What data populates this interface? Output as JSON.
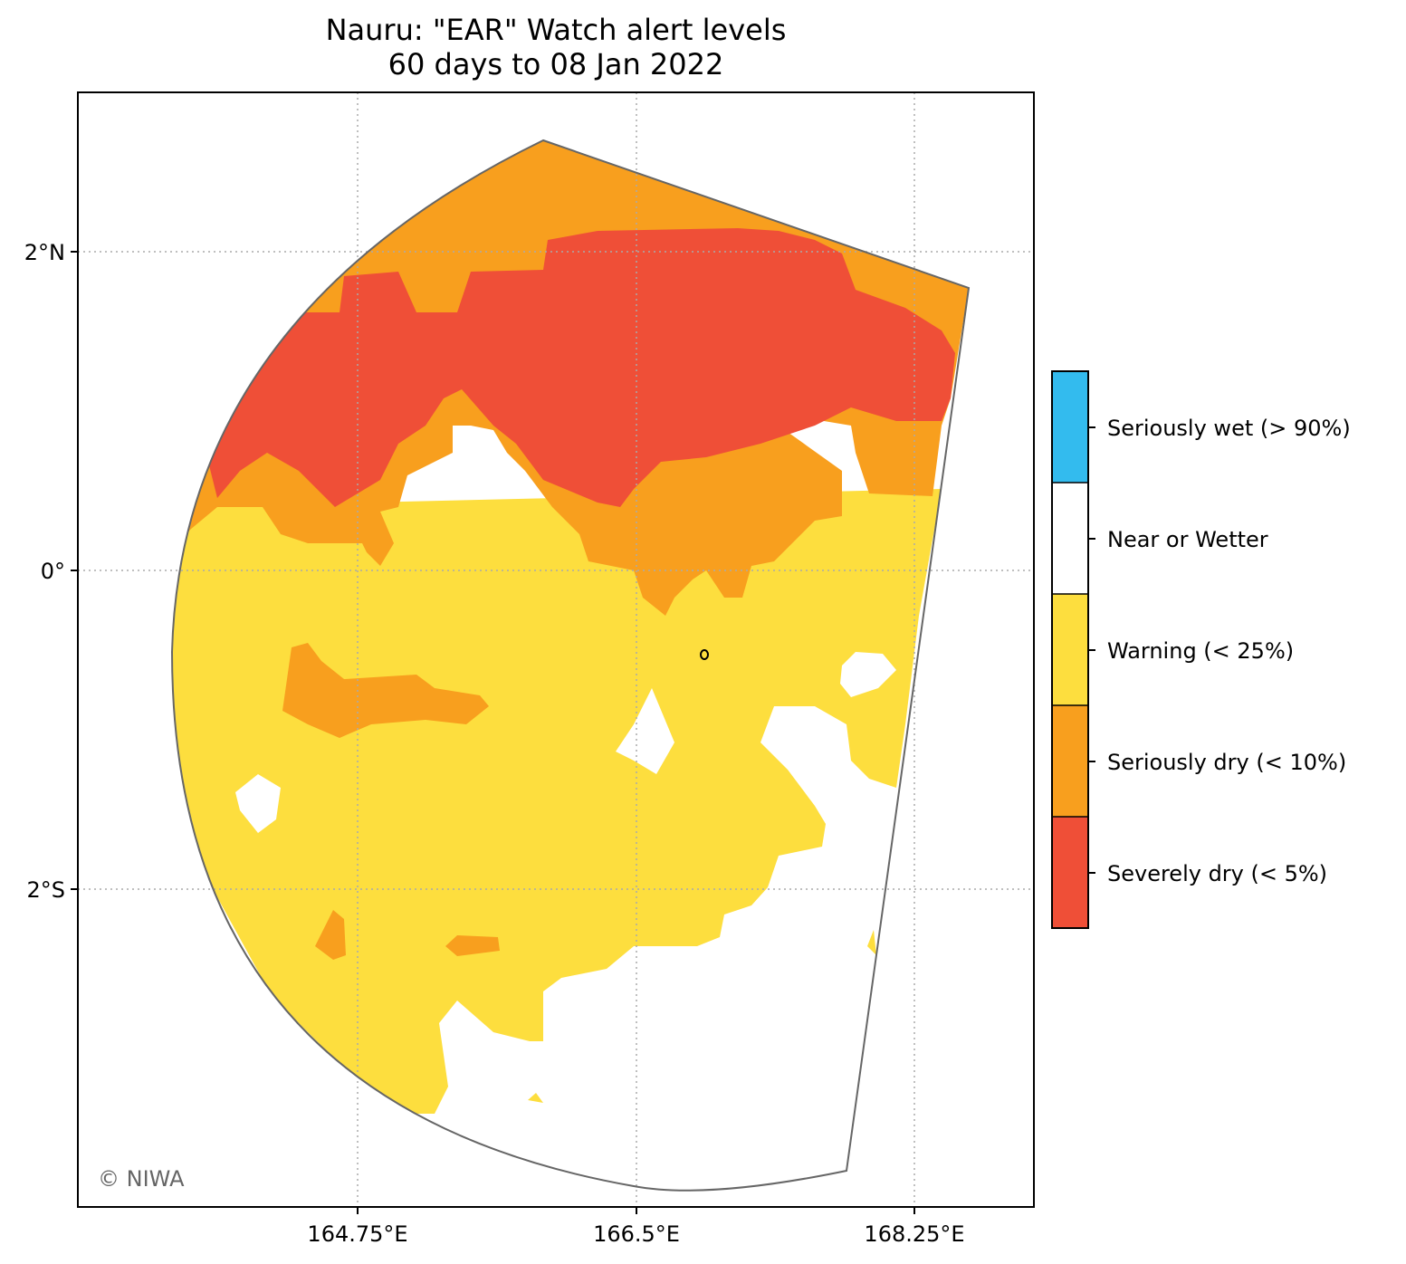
{
  "title": {
    "line1": "Nauru: \"EAR\" Watch alert levels",
    "line2": "60 days to 08 Jan 2022"
  },
  "axes": {
    "x_ticks": [
      "164.75°E",
      "166.5°E",
      "168.25°E"
    ],
    "y_ticks": [
      "2°N",
      "0°",
      "2°S"
    ],
    "gridlines": true,
    "gridline_style": "dotted"
  },
  "legend": {
    "placement": "right",
    "items": [
      {
        "label": "Seriously wet (> 90%)",
        "color": "#33bbee"
      },
      {
        "label": "Near or Wetter",
        "color": "#ffffff"
      },
      {
        "label": "Warning (< 25%)",
        "color": "#fdde3e"
      },
      {
        "label": "Seriously dry (< 10%)",
        "color": "#f89f1e"
      },
      {
        "label": "Severely dry (< 5%)",
        "color": "#ef4f37"
      }
    ]
  },
  "credit": "© NIWA",
  "colors": {
    "region_outline": "#666666",
    "gridline": "#aaaaaa",
    "frame": "#000000"
  }
}
